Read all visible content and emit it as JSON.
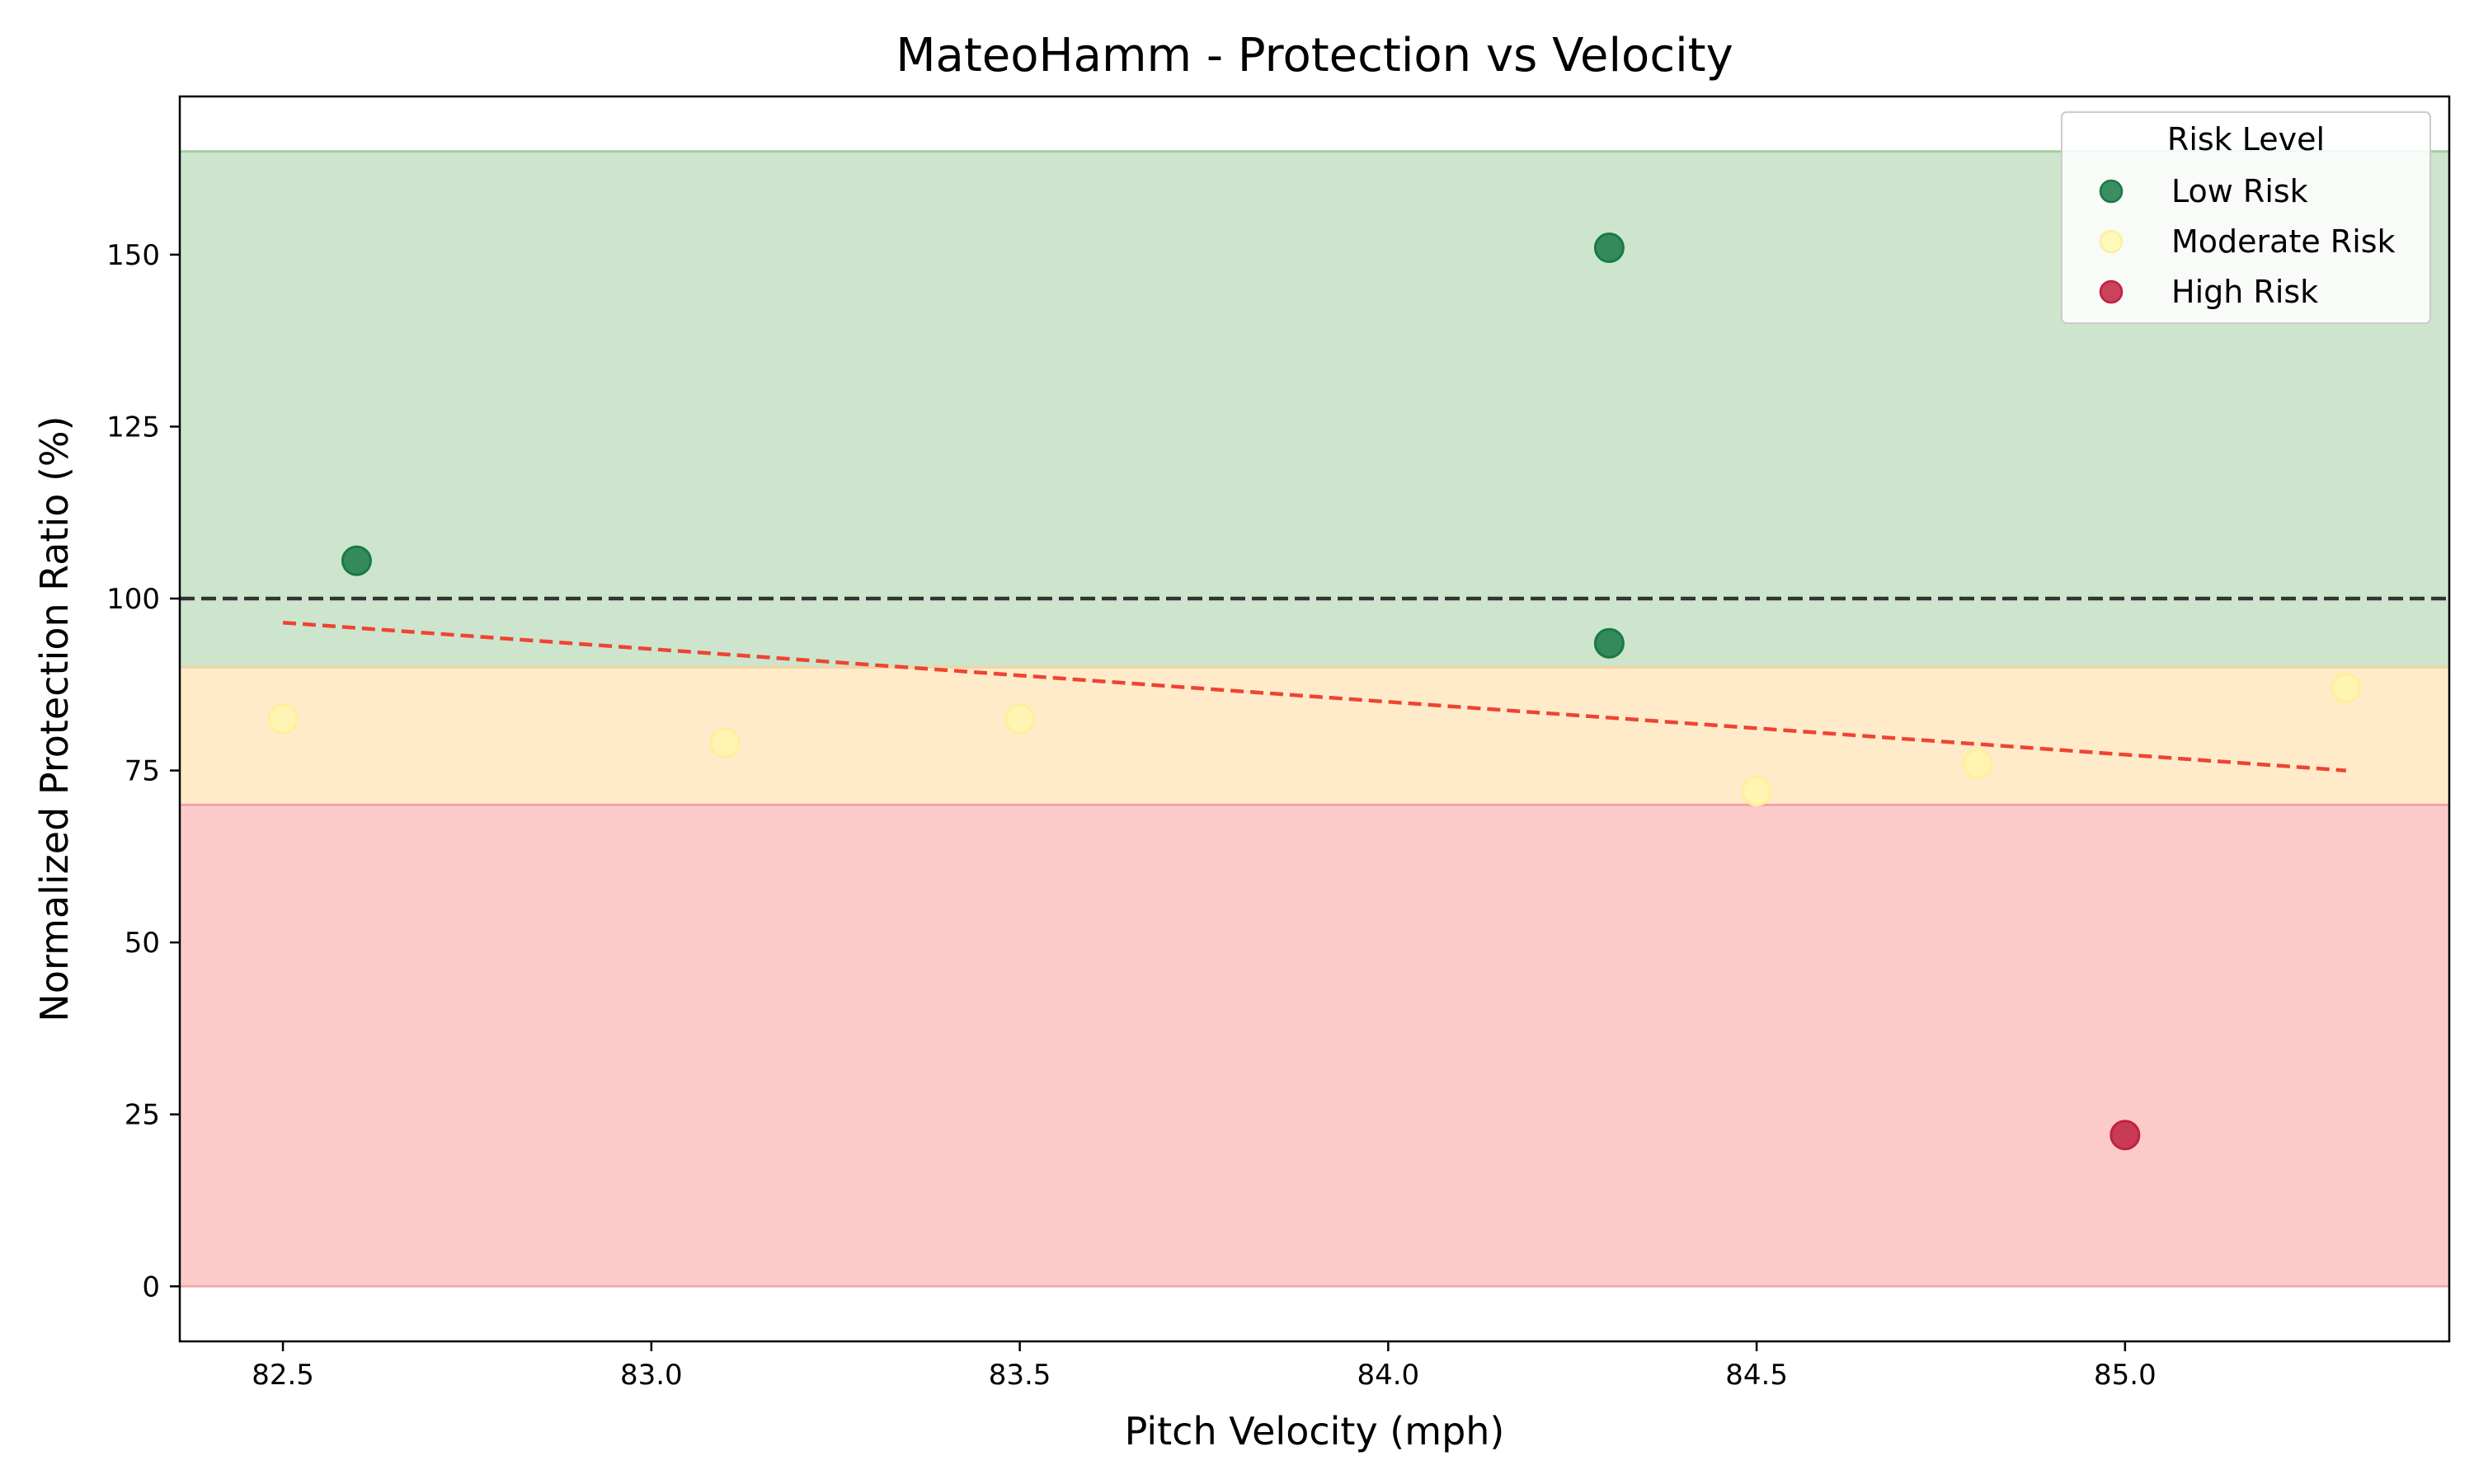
{
  "chart_data": {
    "type": "scatter",
    "title": "MateoHamm - Protection vs Velocity",
    "xlabel": "Pitch Velocity (mph)",
    "ylabel": "Normalized Protection Ratio (%)",
    "xlim": [
      82.36,
      85.44
    ],
    "ylim": [
      -8,
      173
    ],
    "x_ticks": [
      82.5,
      83.0,
      83.5,
      84.0,
      84.5,
      85.0
    ],
    "x_tick_labels": [
      "82.5",
      "83.0",
      "83.5",
      "84.0",
      "84.5",
      "85.0"
    ],
    "y_ticks": [
      0,
      25,
      50,
      75,
      100,
      125,
      150
    ],
    "y_tick_labels": [
      "0",
      "25",
      "50",
      "75",
      "100",
      "125",
      "150"
    ],
    "grid": false,
    "legend_position": "top-right",
    "legend_title": "Risk Level",
    "categories": [
      {
        "name": "Low Risk",
        "color": "#1a7a45"
      },
      {
        "name": "Moderate Risk",
        "color": "#fff7a8"
      },
      {
        "name": "High Risk",
        "color": "#c0223f"
      }
    ],
    "risk_bands": [
      {
        "level": "Low Risk",
        "y_from": 90,
        "y_to": 165,
        "color": "#cde5cd"
      },
      {
        "level": "Moderate Risk",
        "y_from": 70,
        "y_to": 90,
        "color": "#ffebc9"
      },
      {
        "level": "High Risk",
        "y_from": 0,
        "y_to": 70,
        "color": "#fdcaca"
      }
    ],
    "reference_line": {
      "y": 100,
      "style": "dashed",
      "color": "#333333"
    },
    "trend_line": {
      "x": [
        82.5,
        85.3
      ],
      "y": [
        96.5,
        75.0
      ],
      "style": "dashed",
      "color": "#ee4433"
    },
    "points": [
      {
        "x": 82.5,
        "y": 82.5,
        "risk": "Moderate Risk"
      },
      {
        "x": 82.6,
        "y": 105.5,
        "risk": "Low Risk"
      },
      {
        "x": 83.1,
        "y": 79.0,
        "risk": "Moderate Risk"
      },
      {
        "x": 83.5,
        "y": 82.5,
        "risk": "Moderate Risk"
      },
      {
        "x": 84.3,
        "y": 151.0,
        "risk": "Low Risk"
      },
      {
        "x": 84.3,
        "y": 93.5,
        "risk": "Low Risk"
      },
      {
        "x": 84.5,
        "y": 72.0,
        "risk": "Moderate Risk"
      },
      {
        "x": 84.8,
        "y": 76.0,
        "risk": "Moderate Risk"
      },
      {
        "x": 85.0,
        "y": 22.0,
        "risk": "High Risk"
      },
      {
        "x": 85.3,
        "y": 87.0,
        "risk": "Moderate Risk"
      }
    ]
  }
}
